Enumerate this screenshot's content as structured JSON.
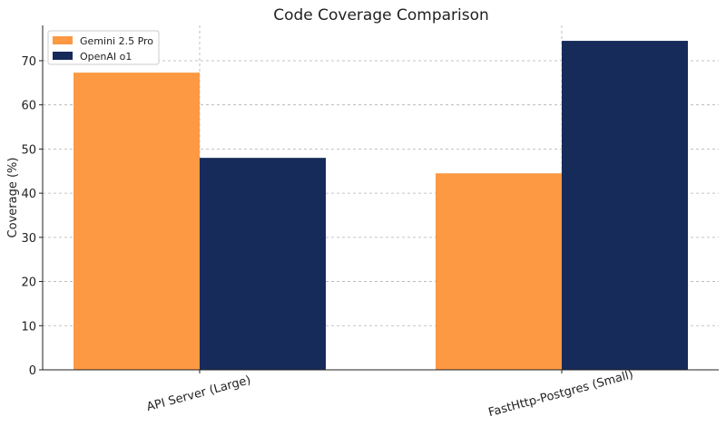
{
  "chart_data": {
    "type": "bar",
    "title": "Code Coverage Comparison",
    "xlabel": "",
    "ylabel": "Coverage (%)",
    "categories": [
      "API Server (Large)",
      "FastHttp-Postgres (Small)"
    ],
    "series": [
      {
        "name": "Gemini 2.5 Pro",
        "values": [
          67.3,
          44.5
        ],
        "color": "#fd9843"
      },
      {
        "name": "OpenAI o1",
        "values": [
          48.0,
          74.5
        ],
        "color": "#172b5a"
      }
    ],
    "ylim": [
      0,
      78
    ],
    "yticks": [
      0,
      10,
      20,
      30,
      40,
      50,
      60,
      70
    ],
    "grid": true,
    "legend_position": "top-left"
  }
}
